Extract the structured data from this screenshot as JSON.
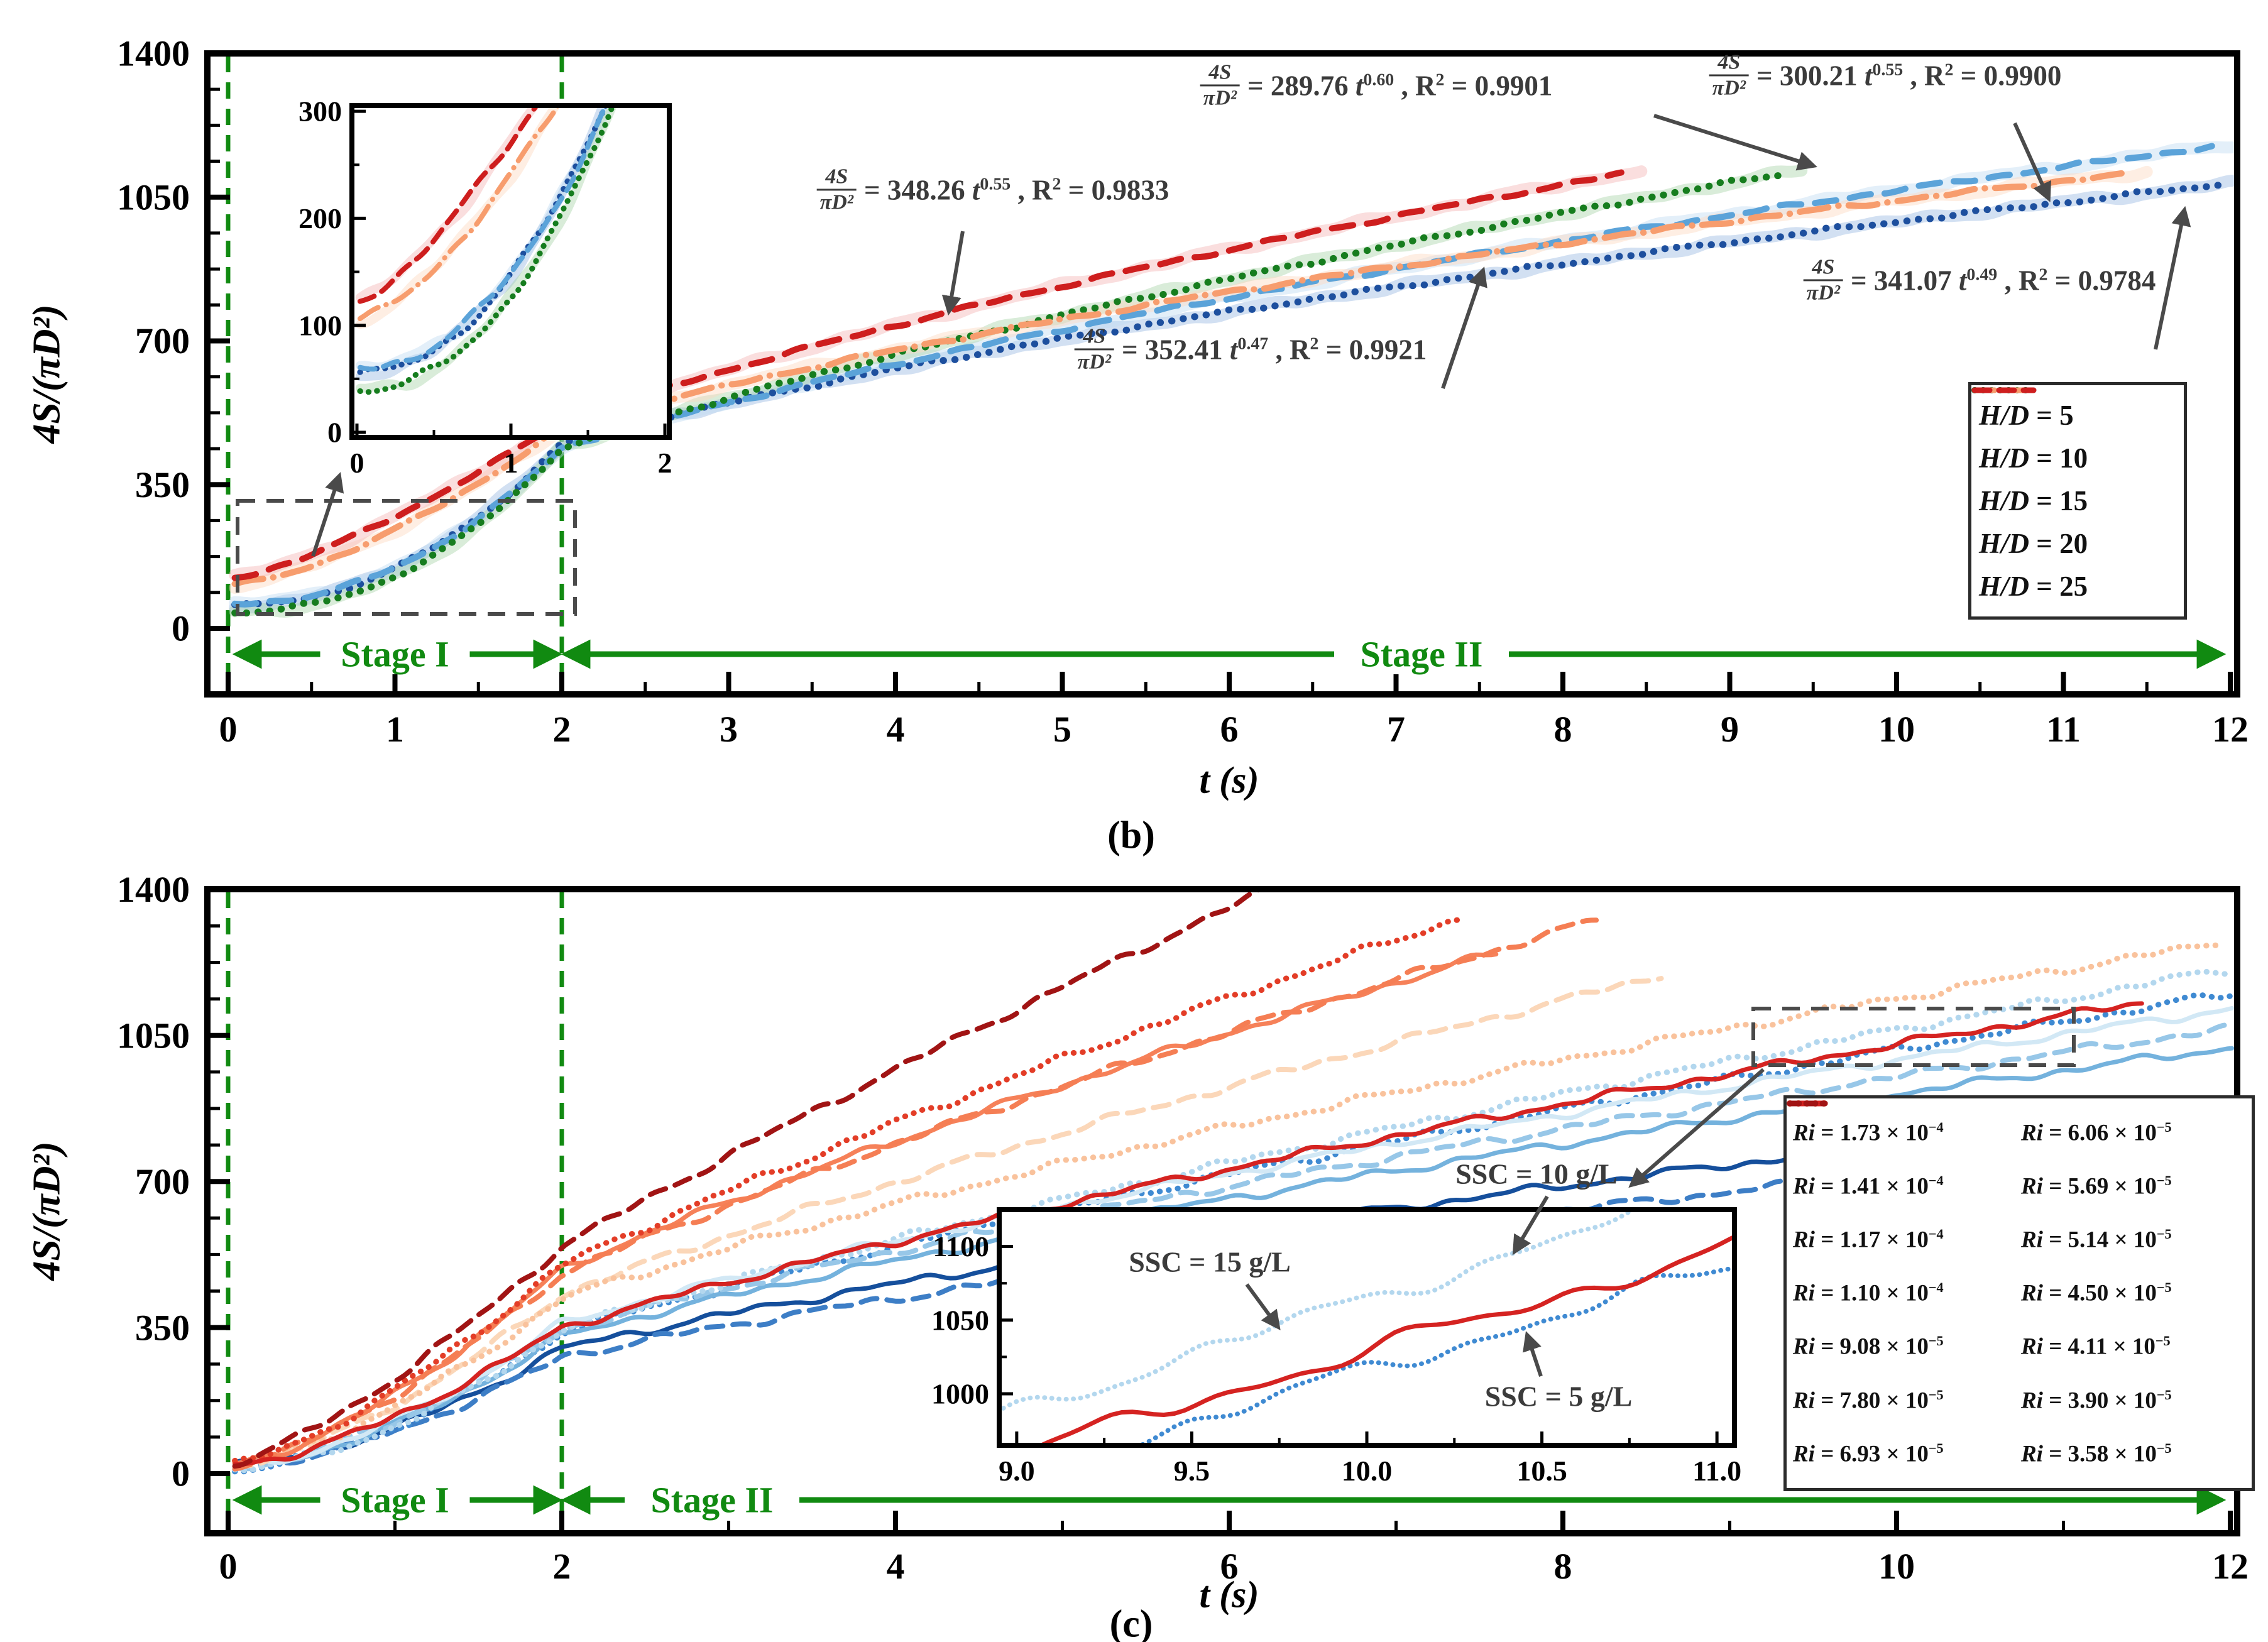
{
  "accent_green": "#118a11",
  "annotation_gray": "#4a4a4a",
  "chart_data": [
    {
      "panel": "b",
      "type": "line",
      "caption": "(b)",
      "xlabel": "t (s)",
      "ylabel": "4S/(πD²)",
      "xlim": [
        0,
        12
      ],
      "ylim": [
        0,
        1400
      ],
      "grid": false,
      "legend_position": "right-middle",
      "xticks": [
        {
          "v": 0,
          "l": "0"
        },
        {
          "v": 1,
          "l": "1"
        },
        {
          "v": 2,
          "l": "2"
        },
        {
          "v": 3,
          "l": "3"
        },
        {
          "v": 4,
          "l": "4"
        },
        {
          "v": 5,
          "l": "5"
        },
        {
          "v": 6,
          "l": "6"
        },
        {
          "v": 7,
          "l": "7"
        },
        {
          "v": 8,
          "l": "8"
        },
        {
          "v": 9,
          "l": "9"
        },
        {
          "v": 10,
          "l": "10"
        },
        {
          "v": 11,
          "l": "11"
        },
        {
          "v": 12,
          "l": "12"
        }
      ],
      "yticks": [
        {
          "v": 0,
          "l": "0"
        },
        {
          "v": 350,
          "l": "350"
        },
        {
          "v": 700,
          "l": "700"
        },
        {
          "v": 1050,
          "l": "1050"
        },
        {
          "v": 1400,
          "l": "1400"
        }
      ],
      "stage1_label": "Stage I",
      "stage2_label": "Stage II",
      "stage_boundary_t": 2,
      "series": [
        {
          "label": "H/D = 5",
          "legend": {
            "var": "H/D",
            "val": "5"
          },
          "color": "#1d4f9e",
          "band": "#9cbbe3",
          "dash": "dot",
          "y0": 55,
          "y2": 450,
          "n": 0.49,
          "p": 2.1,
          "t_end": 11.97
        },
        {
          "label": "H/D = 10",
          "legend": {
            "var": "H/D",
            "val": "10"
          },
          "color": "#5ba3d9",
          "band": "#c0dcf1",
          "dash": "dash",
          "y0": 60,
          "y2": 440,
          "n": 0.55,
          "p": 2.1,
          "t_end": 11.9
        },
        {
          "label": "H/D = 15",
          "legend": {
            "var": "H/D",
            "val": "15"
          },
          "color": "#167d1e",
          "band": "#abd4ab",
          "dash": "dot",
          "y0": 40,
          "y2": 440,
          "n": 0.6,
          "p": 2.2,
          "t_end": 9.32
        },
        {
          "label": "H/D = 20",
          "legend": {
            "var": "H/D",
            "val": "20"
          },
          "color": "#f79d6e",
          "band": "#fcd9c2",
          "dash": "dashdot",
          "y0": 105,
          "y2": 489,
          "n": 0.47,
          "p": 1.5,
          "t_end": 11.38
        },
        {
          "label": "H/D = 25",
          "legend": {
            "var": "H/D",
            "val": "25"
          },
          "color": "#ce1e1e",
          "band": "#f4b5b5",
          "dash": "dash",
          "y0": 122,
          "y2": 504,
          "n": 0.55,
          "p": 1.35,
          "t_end": 8.36
        }
      ],
      "fits": [
        {
          "num": "4S",
          "den": "πD²",
          "coef": "348.26",
          "t_exp": "0.55",
          "r2": "0.9833",
          "x": 1580,
          "y": 302,
          "arrow": [
            1532,
            368,
            1510,
            496
          ]
        },
        {
          "num": "4S",
          "den": "πD²",
          "coef": "289.76",
          "t_exp": "0.60",
          "r2": "0.9901",
          "x": 2190,
          "y": 136,
          "arrow": [
            2632,
            184,
            2886,
            264
          ]
        },
        {
          "num": "4S",
          "den": "πD²",
          "coef": "300.21",
          "t_exp": "0.55",
          "r2": "0.9900",
          "x": 3000,
          "y": 120,
          "arrow": [
            3206,
            196,
            3260,
            316
          ]
        },
        {
          "num": "4S",
          "den": "πD²",
          "coef": "341.07",
          "t_exp": "0.49",
          "r2": "0.9784",
          "x": 3150,
          "y": 446,
          "arrow": [
            3430,
            556,
            3476,
            334
          ]
        },
        {
          "num": "4S",
          "den": "πD²",
          "coef": "352.41",
          "t_exp": "0.47",
          "r2": "0.9921",
          "x": 1990,
          "y": 556,
          "arrow": [
            2296,
            618,
            2360,
            430
          ]
        }
      ],
      "inset": {
        "xlim": [
          0,
          2.05
        ],
        "ylim": [
          0,
          300
        ],
        "xticks": [
          {
            "v": 0,
            "l": "0"
          },
          {
            "v": 1,
            "l": "1"
          },
          {
            "v": 2,
            "l": "2"
          }
        ],
        "yticks": [
          {
            "v": 0,
            "l": "0"
          },
          {
            "v": 100,
            "l": "100"
          },
          {
            "v": 200,
            "l": "200"
          },
          {
            "v": 300,
            "l": "300"
          }
        ]
      }
    },
    {
      "panel": "c",
      "type": "line",
      "caption": "(c)",
      "xlabel": "t (s)",
      "ylabel": "4S/(πD²)",
      "xlim": [
        0,
        12
      ],
      "ylim": [
        0,
        1400
      ],
      "grid": false,
      "legend_position": "right-bottom",
      "xticks": [
        {
          "v": 0,
          "l": "0"
        },
        {
          "v": 2,
          "l": "2"
        },
        {
          "v": 4,
          "l": "4"
        },
        {
          "v": 6,
          "l": "6"
        },
        {
          "v": 8,
          "l": "8"
        },
        {
          "v": 10,
          "l": "10"
        },
        {
          "v": 12,
          "l": "12"
        }
      ],
      "yticks": [
        {
          "v": 0,
          "l": "0"
        },
        {
          "v": 350,
          "l": "350"
        },
        {
          "v": 700,
          "l": "700"
        },
        {
          "v": 1050,
          "l": "1050"
        },
        {
          "v": 1400,
          "l": "1400"
        }
      ],
      "stage1_label": "Stage I",
      "stage2_label": "Stage II",
      "stage_boundary_t": 2,
      "series": [
        {
          "label": "Ri = 1.73 × 10^-4",
          "legend": {
            "var": "Ri",
            "val": "1.73 × 10",
            "sup": "−4"
          },
          "color": "#154f9c",
          "dash": "solid",
          "y0": 20,
          "y2": 300,
          "n": 0.6,
          "p": 1.6,
          "t_end": 12.03
        },
        {
          "label": "Ri = 1.41 × 10^-4",
          "legend": {
            "var": "Ri",
            "val": "1.41 × 10",
            "sup": "−4"
          },
          "color": "#3d7ec6",
          "dash": "dash",
          "y0": 15,
          "y2": 280,
          "n": 0.585,
          "p": 1.6,
          "t_end": 12.03
        },
        {
          "label": "Ri = 1.17 × 10^-4",
          "legend": {
            "var": "Ri",
            "val": "1.17 × 10",
            "sup": "−4"
          },
          "color": "#3f8ad2",
          "dash": "dot",
          "y0": 10,
          "y2": 340,
          "n": 0.68,
          "p": 1.7,
          "t_end": 12.03
        },
        {
          "label": "Ri = 1.10 × 10^-4",
          "legend": {
            "var": "Ri",
            "val": "1.10 × 10",
            "sup": "−4"
          },
          "color": "#74b2dd",
          "dash": "solid",
          "y0": 15,
          "y2": 330,
          "n": 0.63,
          "p": 1.6,
          "t_end": 12.03
        },
        {
          "label": "Ri = 9.08 × 10^-5",
          "legend": {
            "var": "Ri",
            "val": "9.08 × 10",
            "sup": "−5"
          },
          "color": "#97c7e8",
          "dash": "dash",
          "y0": 15,
          "y2": 345,
          "n": 0.63,
          "p": 1.6,
          "t_end": 12.03
        },
        {
          "label": "Ri = 7.80 × 10^-5",
          "legend": {
            "var": "Ri",
            "val": "7.80 × 10",
            "sup": "−5"
          },
          "color": "#b3d7ee",
          "dash": "dot",
          "y0": 10,
          "y2": 345,
          "n": 0.7,
          "p": 1.7,
          "t_end": 12.03
        },
        {
          "label": "Ri = 6.93 × 10^-5",
          "legend": {
            "var": "Ri",
            "val": "6.93 × 10",
            "sup": "−5"
          },
          "color": "#d2e8f5",
          "dash": "solid",
          "y0": 15,
          "y2": 360,
          "n": 0.63,
          "p": 1.6,
          "t_end": 12.03
        },
        {
          "label": "Ri = 6.06 × 10^-5",
          "legend": {
            "var": "Ri",
            "val": "6.06 × 10",
            "sup": "−5"
          },
          "color": "#fbd7b9",
          "dash": "dash",
          "y0": 20,
          "y2": 430,
          "n": 0.7,
          "p": 1.5,
          "t_end": 8.62
        },
        {
          "label": "Ri = 5.69 × 10^-5",
          "legend": {
            "var": "Ri",
            "val": "5.69 × 10",
            "sup": "−5"
          },
          "color": "#f9c29c",
          "dash": "dot",
          "y0": 20,
          "y2": 420,
          "n": 0.62,
          "p": 1.5,
          "t_end": 11.93
        },
        {
          "label": "Ri = 5.14 × 10^-5",
          "legend": {
            "var": "Ri",
            "val": "5.14 × 10",
            "sup": "−5"
          },
          "color": "#f68159",
          "dash": "solid",
          "y0": 20,
          "y2": 490,
          "n": 0.7,
          "p": 1.45,
          "t_end": 7.62
        },
        {
          "label": "Ri = 4.50 × 10^-5",
          "legend": {
            "var": "Ri",
            "val": "4.50 × 10",
            "sup": "−5"
          },
          "color": "#f57e54",
          "dash": "dash",
          "y0": 20,
          "y2": 480,
          "n": 0.72,
          "p": 1.45,
          "t_end": 8.22
        },
        {
          "label": "Ri = 4.11 × 10^-5",
          "legend": {
            "var": "Ri",
            "val": "4.11 × 10",
            "sup": "−5"
          },
          "color": "#e33d27",
          "dash": "dot",
          "y0": 20,
          "y2": 500,
          "n": 0.75,
          "p": 1.4,
          "t_end": 7.42
        },
        {
          "label": "Ri = 3.90 × 10^-5",
          "legend": {
            "var": "Ri",
            "val": "3.90 × 10",
            "sup": "−5"
          },
          "color": "#d52321",
          "dash": "solid",
          "y0": 20,
          "y2": 350,
          "n": 0.67,
          "p": 1.5,
          "t_end": 11.47
        },
        {
          "label": "Ri = 3.58 × 10^-5",
          "legend": {
            "var": "Ri",
            "val": "3.58 × 10",
            "sup": "−5"
          },
          "color": "#a11414",
          "dash": "dash",
          "y0": 25,
          "y2": 545,
          "n": 0.83,
          "p": 1.35,
          "t_end": 6.9
        }
      ],
      "annotations": [
        {
          "label": "SSC = 10 g/L",
          "x": 2445,
          "y": 1868,
          "arrow": [
            2462,
            1904,
            2410,
            1992
          ]
        },
        {
          "label": "SSC = 15 g/L",
          "x": 1925,
          "y": 2008,
          "arrow": [
            1984,
            2044,
            2034,
            2112
          ]
        },
        {
          "label": "SSC = 5 g/L",
          "x": 2480,
          "y": 2222,
          "arrow": [
            2452,
            2190,
            2430,
            2124
          ]
        }
      ],
      "inset": {
        "xlim": [
          8.95,
          11.05
        ],
        "ylim": [
          965,
          1125
        ],
        "xticks": [
          {
            "v": 9,
            "l": "9.0"
          },
          {
            "v": 9.5,
            "l": "9.5"
          },
          {
            "v": 10,
            "l": "10.0"
          },
          {
            "v": 10.5,
            "l": "10.5"
          },
          {
            "v": 11,
            "l": "11.0"
          }
        ],
        "yticks": [
          {
            "v": 1000,
            "l": "1000"
          },
          {
            "v": 1050,
            "l": "1050"
          },
          {
            "v": 1100,
            "l": "1100"
          }
        ],
        "inset_series": [
          2,
          5,
          12
        ]
      }
    }
  ]
}
